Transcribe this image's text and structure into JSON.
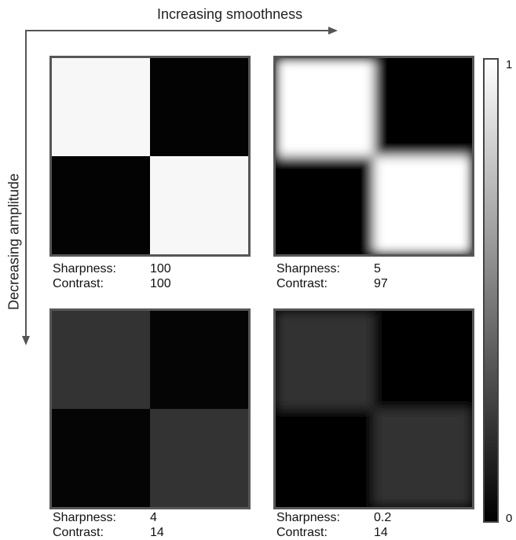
{
  "axes": {
    "x_label": "Increasing smoothness",
    "y_label": "Decreasing amplitude"
  },
  "colorbar": {
    "max_label": "1",
    "min_label": "0"
  },
  "panels": [
    {
      "sharpness_label": "Sharpness:",
      "sharpness_value": "100",
      "contrast_label": "Contrast:",
      "contrast_value": "100",
      "light_color": "#f7f7f7",
      "dark_color": "#030303",
      "blur": 0
    },
    {
      "sharpness_label": "Sharpness:",
      "sharpness_value": "5",
      "contrast_label": "Contrast:",
      "contrast_value": "97",
      "light_color": "#ffffff",
      "dark_color": "#020202",
      "blur": 1
    },
    {
      "sharpness_label": "Sharpness:",
      "sharpness_value": "4",
      "contrast_label": "Contrast:",
      "contrast_value": "14",
      "light_color": "#333333",
      "dark_color": "#050505",
      "blur": 0
    },
    {
      "sharpness_label": "Sharpness:",
      "sharpness_value": "0.2",
      "contrast_label": "Contrast:",
      "contrast_value": "14",
      "light_color": "#333333",
      "dark_color": "#050505",
      "blur": 1
    }
  ]
}
